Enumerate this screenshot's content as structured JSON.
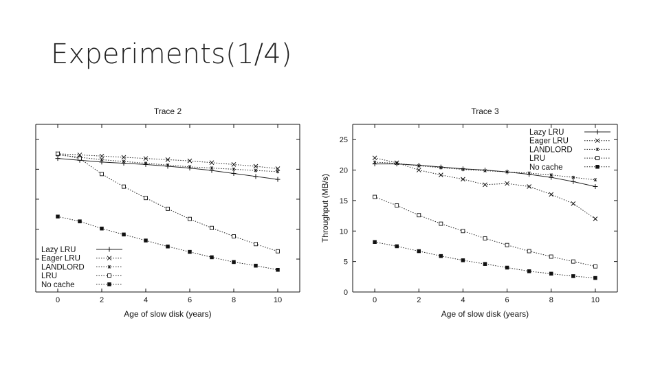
{
  "slide": {
    "title": "Experiments(1/4)"
  },
  "chart_data": [
    {
      "type": "line",
      "title": "Trace 2",
      "xlabel": "Age of slow disk (years)",
      "ylabel": "",
      "xlim": [
        -1,
        11
      ],
      "ylim": [
        -0.5,
        27.5
      ],
      "x_ticks": [
        0,
        2,
        4,
        6,
        8,
        10
      ],
      "y_ticks": [],
      "legend_position": "bottom-left",
      "grid": false,
      "x": [
        0,
        1,
        2,
        3,
        4,
        5,
        6,
        7,
        8,
        9,
        10
      ],
      "series": [
        {
          "name": "Lazy LRU",
          "marker": "plus",
          "dash": "solid",
          "values": [
            21.8,
            21.5,
            21.2,
            21.0,
            20.8,
            20.5,
            20.2,
            19.8,
            19.3,
            18.8,
            18.3
          ]
        },
        {
          "name": "Eager LRU",
          "marker": "x",
          "dash": "dotted",
          "values": [
            22.6,
            22.4,
            22.2,
            22.0,
            21.8,
            21.6,
            21.4,
            21.1,
            20.8,
            20.5,
            20.1
          ]
        },
        {
          "name": "LANDLORD",
          "marker": "star",
          "dash": "dotted",
          "values": [
            22.4,
            22.0,
            21.6,
            21.3,
            21.0,
            20.7,
            20.4,
            20.2,
            20.0,
            19.8,
            19.6
          ]
        },
        {
          "name": "LRU",
          "marker": "square-open",
          "dash": "dotted",
          "values": [
            22.6,
            21.8,
            19.2,
            17.1,
            15.2,
            13.4,
            11.7,
            10.2,
            8.8,
            7.5,
            6.3
          ]
        },
        {
          "name": "No cache",
          "marker": "square-filled",
          "dash": "dotted",
          "values": [
            12.1,
            11.3,
            10.1,
            9.1,
            8.1,
            7.1,
            6.2,
            5.3,
            4.5,
            3.9,
            3.2
          ]
        }
      ]
    },
    {
      "type": "line",
      "title": "Trace 3",
      "xlabel": "Age of slow disk (years)",
      "ylabel": "Throughput (MB/s)",
      "xlim": [
        -1,
        11
      ],
      "ylim": [
        0,
        27.5
      ],
      "x_ticks": [
        0,
        2,
        4,
        6,
        8,
        10
      ],
      "y_ticks": [
        0,
        5,
        10,
        15,
        20,
        25
      ],
      "legend_position": "top-right",
      "grid": false,
      "x": [
        0,
        1,
        2,
        3,
        4,
        5,
        6,
        7,
        8,
        9,
        10
      ],
      "series": [
        {
          "name": "Lazy LRU",
          "marker": "plus",
          "dash": "solid",
          "values": [
            21.0,
            21.0,
            20.8,
            20.5,
            20.2,
            20.0,
            19.7,
            19.3,
            18.8,
            18.1,
            17.3
          ]
        },
        {
          "name": "Eager LRU",
          "marker": "x",
          "dash": "dotted",
          "values": [
            22.0,
            21.2,
            20.0,
            19.2,
            18.5,
            17.6,
            17.8,
            17.3,
            16.0,
            14.5,
            12.0
          ]
        },
        {
          "name": "LANDLORD",
          "marker": "star",
          "dash": "dotted",
          "values": [
            21.3,
            21.1,
            20.7,
            20.4,
            20.1,
            19.9,
            19.7,
            19.5,
            19.2,
            18.8,
            18.4
          ]
        },
        {
          "name": "LRU",
          "marker": "square-open",
          "dash": "dotted",
          "values": [
            15.6,
            14.2,
            12.6,
            11.2,
            10.0,
            8.8,
            7.7,
            6.7,
            5.8,
            5.0,
            4.2
          ]
        },
        {
          "name": "No cache",
          "marker": "square-filled",
          "dash": "dotted",
          "values": [
            8.2,
            7.5,
            6.7,
            5.9,
            5.2,
            4.6,
            4.0,
            3.4,
            3.0,
            2.6,
            2.3
          ]
        }
      ]
    }
  ]
}
